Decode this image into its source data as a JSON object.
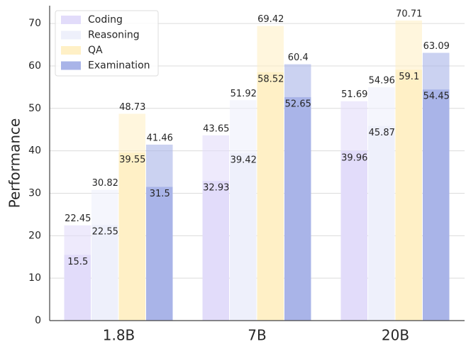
{
  "chart_data": {
    "type": "bar",
    "y_label": "Performance",
    "categories": [
      "1.8B",
      "7B",
      "20B"
    ],
    "series": [
      {
        "name": "Coding",
        "color": "#e2dcfa",
        "values": [
          22.45,
          43.65,
          51.69
        ],
        "inner_values": [
          15.5,
          32.93,
          39.96
        ]
      },
      {
        "name": "Reasoning",
        "color": "#eef0fb",
        "values": [
          30.82,
          51.92,
          54.96
        ],
        "inner_values": [
          22.55,
          39.42,
          45.87
        ]
      },
      {
        "name": "QA",
        "color": "#fff0c6",
        "values": [
          48.73,
          69.42,
          70.71
        ],
        "inner_values": [
          39.55,
          58.52,
          59.1
        ]
      },
      {
        "name": "Examination",
        "color": "#a9b4e8",
        "values": [
          41.46,
          60.4,
          63.09
        ],
        "inner_values": [
          31.5,
          52.65,
          54.45
        ]
      }
    ],
    "ylim": [
      0,
      74.2
    ],
    "yticks": [
      0,
      10,
      20,
      30,
      40,
      50,
      60,
      70
    ],
    "grid": true,
    "legend": "upper left"
  }
}
